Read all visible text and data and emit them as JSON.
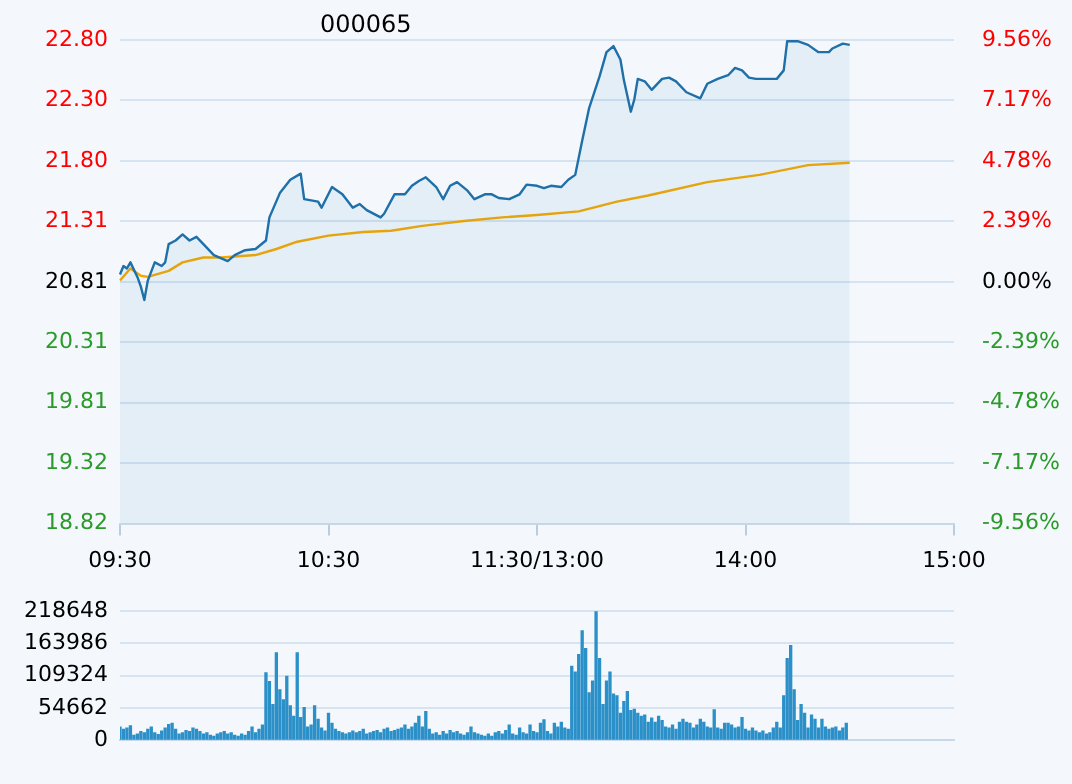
{
  "chart_data": [
    {
      "type": "line",
      "title": "000065",
      "categories": [
        "09:30",
        null,
        null,
        null,
        null,
        null,
        null,
        null,
        null,
        null,
        null,
        null,
        null,
        null,
        null,
        null,
        null,
        null,
        null,
        null,
        null,
        null,
        null,
        null,
        null,
        null,
        null,
        null,
        null,
        null,
        null,
        null,
        null,
        null,
        null,
        null,
        null,
        null,
        null,
        null,
        null,
        null,
        null,
        null,
        null,
        null,
        null,
        null,
        null,
        null,
        null,
        null,
        null,
        null,
        null,
        null,
        null,
        null,
        null,
        null,
        "10:30",
        null,
        null,
        null,
        null,
        null,
        null,
        null,
        null,
        null,
        null,
        null,
        null,
        null,
        null,
        null,
        null,
        null,
        null,
        null,
        null,
        null,
        null,
        null,
        null,
        null,
        null,
        null,
        null,
        null,
        null,
        null,
        null,
        null,
        null,
        null,
        null,
        null,
        null,
        null,
        null,
        null,
        null,
        null,
        null,
        null,
        null,
        null,
        null,
        null,
        null,
        null,
        null,
        null,
        null,
        null,
        null,
        null,
        null,
        null,
        "11:30/13:00",
        null,
        null,
        null,
        null,
        null,
        null,
        null,
        null,
        null,
        null,
        null,
        null,
        null,
        null,
        null,
        null,
        null,
        null,
        null,
        null,
        null,
        null,
        null,
        null,
        null,
        null,
        null,
        null,
        null,
        null,
        null,
        null,
        null,
        null,
        null,
        null,
        null,
        null,
        null,
        null,
        null,
        null,
        null,
        null,
        null,
        null,
        null,
        null,
        null,
        null,
        null,
        null,
        null,
        null,
        null,
        null,
        null,
        null,
        null,
        "14:00",
        null,
        null,
        null,
        null,
        null,
        null,
        null,
        null,
        null,
        null,
        null,
        null,
        null,
        null,
        null,
        null,
        null,
        null,
        null,
        null,
        null,
        null,
        null,
        null,
        null,
        null,
        null,
        null,
        null,
        null,
        null,
        null,
        null,
        null,
        null,
        null,
        null,
        null,
        null,
        null,
        null,
        null,
        null,
        null,
        null,
        null,
        null,
        null,
        null,
        null,
        null,
        null,
        null,
        null,
        null,
        null,
        null,
        null,
        null,
        "15:00"
      ],
      "ylim": [
        18.82,
        22.8
      ],
      "yticks": [
        {
          "value": 18.82,
          "label": "18.82"
        },
        {
          "value": 19.3175,
          "label": "19.32"
        },
        {
          "value": 19.815,
          "label": "19.81"
        },
        {
          "value": 20.3125,
          "label": "20.31"
        },
        {
          "value": 20.81,
          "label": "20.81"
        },
        {
          "value": 21.3075,
          "label": "21.31"
        },
        {
          "value": 21.805,
          "label": "21.80"
        },
        {
          "value": 22.3025,
          "label": "22.30"
        },
        {
          "value": 22.8,
          "label": "22.80"
        }
      ],
      "y2lim": [
        -9.56,
        9.56
      ],
      "y2ticks": [
        {
          "value": -9.56,
          "label": "-9.56%"
        },
        {
          "value": -7.17,
          "label": "-7.17%"
        },
        {
          "value": -4.78,
          "label": "-4.78%"
        },
        {
          "value": -2.39,
          "label": "-2.39%"
        },
        {
          "value": 0,
          "label": "0.00%"
        },
        {
          "value": 2.39,
          "label": "2.39%"
        },
        {
          "value": 4.78,
          "label": "4.78%"
        },
        {
          "value": 7.17,
          "label": "7.17%"
        },
        {
          "value": 9.56,
          "label": "9.56%"
        }
      ],
      "grid": "y",
      "marker": "none",
      "series": [
        {
          "type": "area",
          "color": "#1f6fa8",
          "values": [
            20.87,
            20.94,
            20.92,
            20.97,
            null,
            20.85,
            20.77,
            20.66,
            20.82,
            null,
            20.97,
            null,
            20.94,
            20.97,
            21.12,
            null,
            21.15,
            null,
            21.2,
            null,
            21.15,
            null,
            21.18,
            null,
            21.12,
            null,
            null,
            21.03,
            null,
            null,
            null,
            20.98,
            null,
            21.03,
            null,
            null,
            21.07,
            null,
            null,
            21.08,
            null,
            null,
            21.15,
            21.34,
            null,
            null,
            21.54,
            null,
            null,
            21.65,
            null,
            null,
            21.7,
            21.49,
            null,
            null,
            null,
            21.47,
            21.42,
            null,
            null,
            21.59,
            null,
            null,
            21.53,
            null,
            null,
            21.42,
            null,
            21.45,
            null,
            21.4,
            null,
            null,
            null,
            21.34,
            21.37,
            null,
            null,
            21.53,
            null,
            null,
            21.53,
            null,
            21.6,
            null,
            21.64,
            null,
            21.67,
            null,
            null,
            21.59,
            null,
            21.49,
            null,
            21.6,
            null,
            21.63,
            null,
            null,
            21.56,
            null,
            21.49,
            null,
            null,
            21.53,
            null,
            21.53,
            null,
            21.5,
            null,
            null,
            21.49,
            null,
            null,
            21.53,
            null,
            21.61,
            null,
            null,
            21.6,
            null,
            21.58,
            null,
            21.6,
            null,
            null,
            21.59,
            null,
            21.65,
            null,
            21.69,
            null,
            21.97,
            null,
            22.24,
            null,
            null,
            22.5,
            null,
            22.7,
            null,
            22.75,
            null,
            22.64,
            22.47,
            null,
            22.21,
            22.31,
            22.48,
            null,
            22.46,
            null,
            22.39,
            null,
            null,
            22.48,
            null,
            22.49,
            null,
            22.46,
            null,
            null,
            22.37,
            null,
            null,
            null,
            22.32,
            null,
            22.44,
            null,
            null,
            22.48,
            null,
            null,
            22.51,
            null,
            22.57,
            null,
            22.55,
            null,
            22.49,
            null,
            22.48,
            null,
            null,
            22.48,
            null,
            null,
            22.48,
            null,
            22.55,
            22.79,
            null,
            null,
            22.79,
            null,
            null,
            22.76,
            null,
            null,
            22.7,
            null,
            null,
            22.7,
            22.73,
            null,
            null,
            22.77,
            null,
            22.76,
            null,
            null,
            null,
            null,
            null,
            null,
            null,
            null,
            null,
            null,
            null,
            null,
            null,
            null,
            null,
            null,
            null,
            null,
            null,
            null,
            null,
            null,
            null,
            null,
            null,
            null,
            null,
            null,
            null,
            null
          ]
        },
        {
          "type": "line",
          "color": "#f5a800",
          "values": [
            20.82,
            null,
            null,
            20.92,
            null,
            null,
            20.86,
            null,
            20.85,
            null,
            null,
            null,
            null,
            null,
            20.9,
            null,
            null,
            null,
            20.97,
            null,
            null,
            null,
            null,
            null,
            21.01,
            null,
            null,
            null,
            null,
            21.01,
            null,
            null,
            null,
            null,
            null,
            null,
            null,
            null,
            null,
            21.03,
            null,
            null,
            null,
            null,
            null,
            21.08,
            null,
            null,
            null,
            null,
            null,
            21.14,
            null,
            null,
            null,
            null,
            null,
            null,
            null,
            null,
            21.19,
            null,
            null,
            null,
            null,
            null,
            null,
            null,
            null,
            null,
            21.22,
            null,
            null,
            null,
            null,
            null,
            null,
            null,
            21.23,
            null,
            null,
            null,
            null,
            null,
            null,
            null,
            null,
            21.27,
            null,
            null,
            null,
            null,
            null,
            null,
            null,
            null,
            null,
            null,
            null,
            21.31,
            null,
            null,
            null,
            null,
            null,
            null,
            null,
            null,
            null,
            null,
            21.34,
            null,
            null,
            null,
            null,
            null,
            null,
            null,
            null,
            null,
            21.36,
            null,
            null,
            null,
            null,
            null,
            null,
            null,
            null,
            null,
            null,
            null,
            21.39,
            null,
            null,
            null,
            null,
            null,
            null,
            null,
            null,
            null,
            null,
            21.47,
            null,
            null,
            null,
            null,
            null,
            null,
            null,
            null,
            21.52,
            null,
            null,
            null,
            null,
            null,
            null,
            null,
            null,
            null,
            null,
            null,
            null,
            null,
            null,
            null,
            null,
            21.63,
            null,
            null,
            null,
            null,
            null,
            null,
            null,
            null,
            null,
            null,
            null,
            null,
            null,
            null,
            21.69,
            null,
            null,
            null,
            null,
            null,
            null,
            null,
            null,
            null,
            null,
            null,
            null,
            null,
            21.77,
            null,
            null,
            null,
            null,
            null,
            null,
            null,
            null,
            null,
            null,
            null,
            21.79,
            null,
            null,
            null,
            null,
            null,
            null,
            null,
            null,
            null,
            null,
            null,
            null,
            null,
            null,
            null,
            null,
            null,
            null,
            null,
            null,
            null,
            null,
            null,
            null,
            null,
            null,
            null,
            null,
            null,
            null
          ]
        }
      ]
    },
    {
      "type": "bar",
      "tick_labels": "y",
      "ylim": [
        0,
        218648
      ],
      "yticks": [
        0,
        54662,
        109324,
        163986,
        218648
      ],
      "grid": "y",
      "color": "#2b8fc8",
      "categories": [
        null,
        null,
        null,
        null,
        null,
        null,
        null,
        null,
        null,
        null,
        null,
        null,
        null,
        null,
        null,
        null,
        null,
        null,
        null,
        null,
        null,
        null,
        null,
        null,
        null,
        null,
        null,
        null,
        null,
        null,
        null,
        null,
        null,
        null,
        null,
        null,
        null,
        null,
        null,
        null,
        null,
        null,
        null,
        null,
        null,
        null,
        null,
        null,
        null,
        null,
        null,
        null,
        null,
        null,
        null,
        null,
        null,
        null,
        null,
        null,
        null,
        null,
        null,
        null,
        null,
        null,
        null,
        null,
        null,
        null,
        null,
        null,
        null,
        null,
        null,
        null,
        null,
        null,
        null,
        null,
        null,
        null,
        null,
        null,
        null,
        null,
        null,
        null,
        null,
        null,
        null,
        null,
        null,
        null,
        null,
        null,
        null,
        null,
        null,
        null,
        null,
        null,
        null,
        null,
        null,
        null,
        null,
        null,
        null,
        null,
        null,
        null,
        null,
        null,
        null,
        null,
        null,
        null,
        null,
        null,
        null,
        null,
        null,
        null,
        null,
        null,
        null,
        null,
        null,
        null,
        null,
        null,
        null,
        null,
        null,
        null,
        null,
        null,
        null,
        null,
        null,
        null,
        null,
        null,
        null,
        null,
        null,
        null,
        null,
        null,
        null,
        null,
        null,
        null,
        null,
        null,
        null,
        null,
        null,
        null,
        null,
        null,
        null,
        null,
        null,
        null,
        null,
        null,
        null,
        null,
        null,
        null,
        null,
        null,
        null,
        null,
        null,
        null,
        null,
        null,
        null,
        null,
        null,
        null,
        null,
        null,
        null,
        null,
        null,
        null,
        null,
        null,
        null,
        null,
        null,
        null,
        null,
        null,
        null,
        null,
        null,
        null,
        null,
        null,
        null,
        null,
        null,
        null,
        null,
        null,
        null,
        null,
        null,
        null,
        null,
        null,
        null,
        null,
        null,
        null,
        null,
        null,
        null,
        null,
        null,
        null,
        null,
        null,
        null,
        null,
        null,
        null,
        null,
        null,
        null,
        null,
        null,
        null,
        null,
        null,
        null
      ],
      "values": [
        22000,
        18000,
        20000,
        24000,
        8000,
        10000,
        14000,
        12000,
        18000,
        22000,
        12000,
        9000,
        15000,
        20000,
        26000,
        28000,
        18000,
        10000,
        12000,
        16000,
        14000,
        20000,
        18000,
        14000,
        10000,
        12000,
        8000,
        6000,
        10000,
        12000,
        14000,
        10000,
        12000,
        8000,
        6000,
        10000,
        8000,
        14000,
        22000,
        12000,
        18000,
        25000,
        114000,
        99000,
        60000,
        148000,
        85000,
        68000,
        108000,
        58000,
        40000,
        148000,
        38000,
        55000,
        22000,
        25000,
        58000,
        35000,
        20000,
        15000,
        45000,
        28000,
        18000,
        14000,
        12000,
        10000,
        12000,
        15000,
        12000,
        14000,
        18000,
        10000,
        12000,
        14000,
        16000,
        12000,
        18000,
        20000,
        14000,
        16000,
        18000,
        20000,
        25000,
        18000,
        22000,
        28000,
        40000,
        22000,
        48000,
        18000,
        10000,
        12000,
        8000,
        14000,
        10000,
        16000,
        12000,
        14000,
        10000,
        8000,
        12000,
        22000,
        12000,
        10000,
        8000,
        6000,
        10000,
        6000,
        12000,
        14000,
        10000,
        16000,
        25000,
        10000,
        8000,
        20000,
        12000,
        10000,
        25000,
        14000,
        12000,
        28000,
        34000,
        14000,
        10000,
        28000,
        22000,
        30000,
        20000,
        18000,
        125000,
        115000,
        145000,
        185000,
        155000,
        80000,
        100000,
        218000,
        138000,
        60000,
        100000,
        115000,
        78000,
        75000,
        45000,
        65000,
        82000,
        50000,
        52000,
        45000,
        40000,
        42000,
        30000,
        37000,
        30000,
        40000,
        33000,
        22000,
        20000,
        25000,
        18000,
        30000,
        35000,
        30000,
        28000,
        20000,
        25000,
        35000,
        30000,
        22000,
        20000,
        51000,
        20000,
        18000,
        28000,
        28000,
        25000,
        20000,
        22000,
        38000,
        18000,
        15000,
        20000,
        15000,
        12000,
        15000,
        10000,
        12000,
        20000,
        30000,
        20000,
        75000,
        138000,
        160000,
        85000,
        33000,
        60000,
        45000,
        20000,
        42000,
        35000,
        20000,
        35000,
        22000,
        18000,
        20000,
        22000,
        15000,
        20000,
        28000,
        null,
        null,
        null,
        null,
        null,
        null,
        null,
        null,
        null,
        null,
        null,
        null,
        null,
        null,
        null,
        null,
        null,
        null,
        null,
        null,
        null,
        null,
        null,
        null,
        null,
        null,
        null,
        null,
        null,
        null,
        null
      ]
    }
  ]
}
